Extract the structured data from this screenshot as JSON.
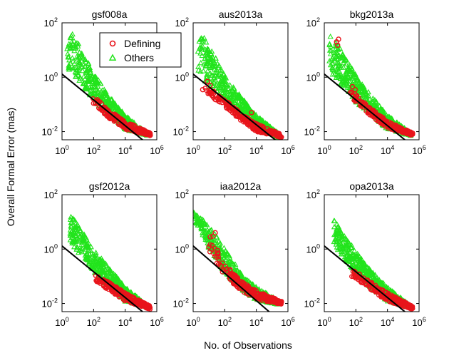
{
  "figure": {
    "xlabel": "No. of Observations",
    "ylabel": "Overall Formal Error (mas)"
  },
  "legend": {
    "location": "top-right of first panel",
    "entries": [
      {
        "label": "Defining",
        "marker": "circle",
        "color": "#e8141b"
      },
      {
        "label": "Others",
        "marker": "triangle",
        "color": "#22e41c"
      }
    ]
  },
  "colors": {
    "defining": "#e8141b",
    "others": "#22e41c",
    "fit_line": "#000000"
  },
  "chart_data": [
    {
      "type": "scatter",
      "title": "gsf008a",
      "xscale": "log",
      "yscale": "log",
      "xlim": [
        1,
        1000000
      ],
      "ylim": [
        0.005,
        100
      ],
      "x_ticks": [
        "10^0",
        "10^2",
        "10^4",
        "10^6"
      ],
      "y_ticks": [
        "10^-2",
        "10^0",
        "10^2"
      ],
      "fit_line": [
        [
          1,
          1.3
        ],
        [
          200000,
          0.004
        ]
      ],
      "others_band": {
        "x_range": [
          2,
          300000
        ],
        "upper": [
          [
            2,
            80
          ],
          [
            10,
            20
          ],
          [
            100,
            1.5
          ],
          [
            1000,
            0.2
          ],
          [
            10000,
            0.04
          ],
          [
            300000,
            0.008
          ]
        ],
        "lower": [
          [
            2,
            2
          ],
          [
            10,
            0.8
          ],
          [
            100,
            0.15
          ],
          [
            1000,
            0.04
          ],
          [
            10000,
            0.012
          ],
          [
            300000,
            0.007
          ]
        ]
      },
      "defining_band": {
        "x_range": [
          80,
          400000
        ],
        "upper": [
          [
            80,
            0.25
          ],
          [
            1000,
            0.06
          ],
          [
            10000,
            0.025
          ],
          [
            400000,
            0.009
          ]
        ],
        "lower": [
          [
            80,
            0.12
          ],
          [
            1000,
            0.03
          ],
          [
            10000,
            0.012
          ],
          [
            400000,
            0.007
          ]
        ]
      },
      "defining_outliers": []
    },
    {
      "type": "scatter",
      "title": "aus2013a",
      "xscale": "log",
      "yscale": "log",
      "xlim": [
        1,
        1000000
      ],
      "ylim": [
        0.005,
        100
      ],
      "x_ticks": [
        "10^0",
        "10^2",
        "10^4",
        "10^6"
      ],
      "y_ticks": [
        "10^-2",
        "10^0",
        "10^2"
      ],
      "fit_line": [
        [
          1,
          1.3
        ],
        [
          250000,
          0.004
        ]
      ],
      "others_band": {
        "x_range": [
          2,
          300000
        ],
        "upper": [
          [
            2,
            70
          ],
          [
            10,
            15
          ],
          [
            100,
            1.2
          ],
          [
            1000,
            0.2
          ],
          [
            10000,
            0.04
          ],
          [
            300000,
            0.008
          ]
        ],
        "lower": [
          [
            2,
            1.5
          ],
          [
            10,
            0.5
          ],
          [
            100,
            0.12
          ],
          [
            1000,
            0.04
          ],
          [
            10000,
            0.012
          ],
          [
            300000,
            0.006
          ]
        ]
      },
      "defining_band": {
        "x_range": [
          5,
          400000
        ],
        "upper": [
          [
            5,
            0.5
          ],
          [
            100,
            0.15
          ],
          [
            1000,
            0.05
          ],
          [
            10000,
            0.02
          ],
          [
            400000,
            0.008
          ]
        ],
        "lower": [
          [
            5,
            0.3
          ],
          [
            100,
            0.08
          ],
          [
            1000,
            0.025
          ],
          [
            10000,
            0.01
          ],
          [
            400000,
            0.006
          ]
        ]
      },
      "defining_outliers": [
        [
          4,
          0.35
        ],
        [
          8,
          0.7
        ],
        [
          12,
          0.5
        ],
        [
          20,
          0.3
        ],
        [
          15,
          0.25
        ],
        [
          5000,
          0.05
        ]
      ]
    },
    {
      "type": "scatter",
      "title": "bkg2013a",
      "xscale": "log",
      "yscale": "log",
      "xlim": [
        1,
        1000000
      ],
      "ylim": [
        0.005,
        100
      ],
      "x_ticks": [
        "10^0",
        "10^2",
        "10^4",
        "10^6"
      ],
      "y_ticks": [
        "10^-2",
        "10^0",
        "10^2"
      ],
      "fit_line": [
        [
          1,
          1.3
        ],
        [
          200000,
          0.004
        ]
      ],
      "others_band": {
        "x_range": [
          2,
          300000
        ],
        "upper": [
          [
            2,
            60
          ],
          [
            10,
            12
          ],
          [
            100,
            1.2
          ],
          [
            1000,
            0.2
          ],
          [
            10000,
            0.04
          ],
          [
            300000,
            0.009
          ]
        ],
        "lower": [
          [
            2,
            1.5
          ],
          [
            10,
            0.6
          ],
          [
            100,
            0.12
          ],
          [
            1000,
            0.04
          ],
          [
            10000,
            0.012
          ],
          [
            300000,
            0.007
          ]
        ]
      },
      "defining_band": {
        "x_range": [
          40,
          400000
        ],
        "upper": [
          [
            40,
            0.4
          ],
          [
            1000,
            0.07
          ],
          [
            10000,
            0.025
          ],
          [
            400000,
            0.009
          ]
        ],
        "lower": [
          [
            40,
            0.2
          ],
          [
            1000,
            0.035
          ],
          [
            10000,
            0.013
          ],
          [
            400000,
            0.007
          ]
        ]
      },
      "defining_outliers": [
        [
          6,
          20
        ],
        [
          8,
          25
        ],
        [
          7,
          15
        ],
        [
          60,
          0.45
        ],
        [
          90,
          0.35
        ]
      ]
    },
    {
      "type": "scatter",
      "title": "gsf2012a",
      "xscale": "log",
      "yscale": "log",
      "xlim": [
        1,
        1000000
      ],
      "ylim": [
        0.005,
        100
      ],
      "x_ticks": [
        "10^0",
        "10^2",
        "10^4",
        "10^6"
      ],
      "y_ticks": [
        "10^-2",
        "10^0",
        "10^2"
      ],
      "fit_line": [
        [
          1,
          1.3
        ],
        [
          200000,
          0.004
        ]
      ],
      "others_band": {
        "x_range": [
          3,
          300000
        ],
        "upper": [
          [
            3,
            20
          ],
          [
            10,
            8
          ],
          [
            100,
            1.0
          ],
          [
            1000,
            0.2
          ],
          [
            10000,
            0.04
          ],
          [
            300000,
            0.008
          ]
        ],
        "lower": [
          [
            3,
            2
          ],
          [
            10,
            0.8
          ],
          [
            100,
            0.15
          ],
          [
            1000,
            0.04
          ],
          [
            10000,
            0.012
          ],
          [
            300000,
            0.007
          ]
        ]
      },
      "defining_band": {
        "x_range": [
          100,
          400000
        ],
        "upper": [
          [
            100,
            0.12
          ],
          [
            1000,
            0.06
          ],
          [
            10000,
            0.025
          ],
          [
            400000,
            0.008
          ]
        ],
        "lower": [
          [
            100,
            0.07
          ],
          [
            1000,
            0.03
          ],
          [
            10000,
            0.012
          ],
          [
            400000,
            0.006
          ]
        ]
      },
      "defining_outliers": []
    },
    {
      "type": "scatter",
      "title": "iaa2012a",
      "xscale": "log",
      "yscale": "log",
      "xlim": [
        1,
        1000000
      ],
      "ylim": [
        0.005,
        100
      ],
      "x_ticks": [
        "10^0",
        "10^2",
        "10^4",
        "10^6"
      ],
      "y_ticks": [
        "10^-2",
        "10^0",
        "10^2"
      ],
      "fit_line": [
        [
          1,
          1.3
        ],
        [
          100000,
          0.004
        ]
      ],
      "others_band": {
        "x_range": [
          1,
          300000
        ],
        "upper": [
          [
            1,
            25
          ],
          [
            10,
            8
          ],
          [
            100,
            1.0
          ],
          [
            1000,
            0.15
          ],
          [
            10000,
            0.04
          ],
          [
            300000,
            0.012
          ]
        ],
        "lower": [
          [
            1,
            15
          ],
          [
            10,
            1.0
          ],
          [
            100,
            0.12
          ],
          [
            1000,
            0.035
          ],
          [
            10000,
            0.013
          ],
          [
            300000,
            0.009
          ]
        ]
      },
      "defining_band": {
        "x_range": [
          10,
          400000
        ],
        "upper": [
          [
            10,
            2.0
          ],
          [
            30,
            1.0
          ],
          [
            100,
            0.3
          ],
          [
            1000,
            0.07
          ],
          [
            10000,
            0.03
          ],
          [
            400000,
            0.012
          ]
        ],
        "lower": [
          [
            10,
            0.6
          ],
          [
            30,
            0.3
          ],
          [
            100,
            0.1
          ],
          [
            1000,
            0.03
          ],
          [
            10000,
            0.014
          ],
          [
            400000,
            0.009
          ]
        ]
      },
      "defining_outliers": [
        [
          12,
          2.8
        ],
        [
          18,
          3.0
        ],
        [
          25,
          4.0
        ],
        [
          10,
          1.2
        ],
        [
          35,
          0.9
        ]
      ]
    },
    {
      "type": "scatter",
      "title": "opa2013a",
      "xscale": "log",
      "yscale": "log",
      "xlim": [
        1,
        1000000
      ],
      "ylim": [
        0.005,
        100
      ],
      "x_ticks": [
        "10^0",
        "10^2",
        "10^4",
        "10^6"
      ],
      "y_ticks": [
        "10^-2",
        "10^0",
        "10^2"
      ],
      "fit_line": [
        [
          1,
          1.3
        ],
        [
          200000,
          0.004
        ]
      ],
      "others_band": {
        "x_range": [
          4,
          300000
        ],
        "upper": [
          [
            4,
            12
          ],
          [
            10,
            6
          ],
          [
            100,
            0.8
          ],
          [
            1000,
            0.15
          ],
          [
            10000,
            0.04
          ],
          [
            300000,
            0.008
          ]
        ],
        "lower": [
          [
            4,
            1.5
          ],
          [
            10,
            0.7
          ],
          [
            100,
            0.13
          ],
          [
            1000,
            0.035
          ],
          [
            10000,
            0.012
          ],
          [
            300000,
            0.007
          ]
        ]
      },
      "defining_band": {
        "x_range": [
          50,
          400000
        ],
        "upper": [
          [
            50,
            0.2
          ],
          [
            1000,
            0.06
          ],
          [
            10000,
            0.025
          ],
          [
            400000,
            0.008
          ]
        ],
        "lower": [
          [
            50,
            0.1
          ],
          [
            1000,
            0.03
          ],
          [
            10000,
            0.012
          ],
          [
            400000,
            0.006
          ]
        ]
      },
      "defining_outliers": []
    }
  ]
}
